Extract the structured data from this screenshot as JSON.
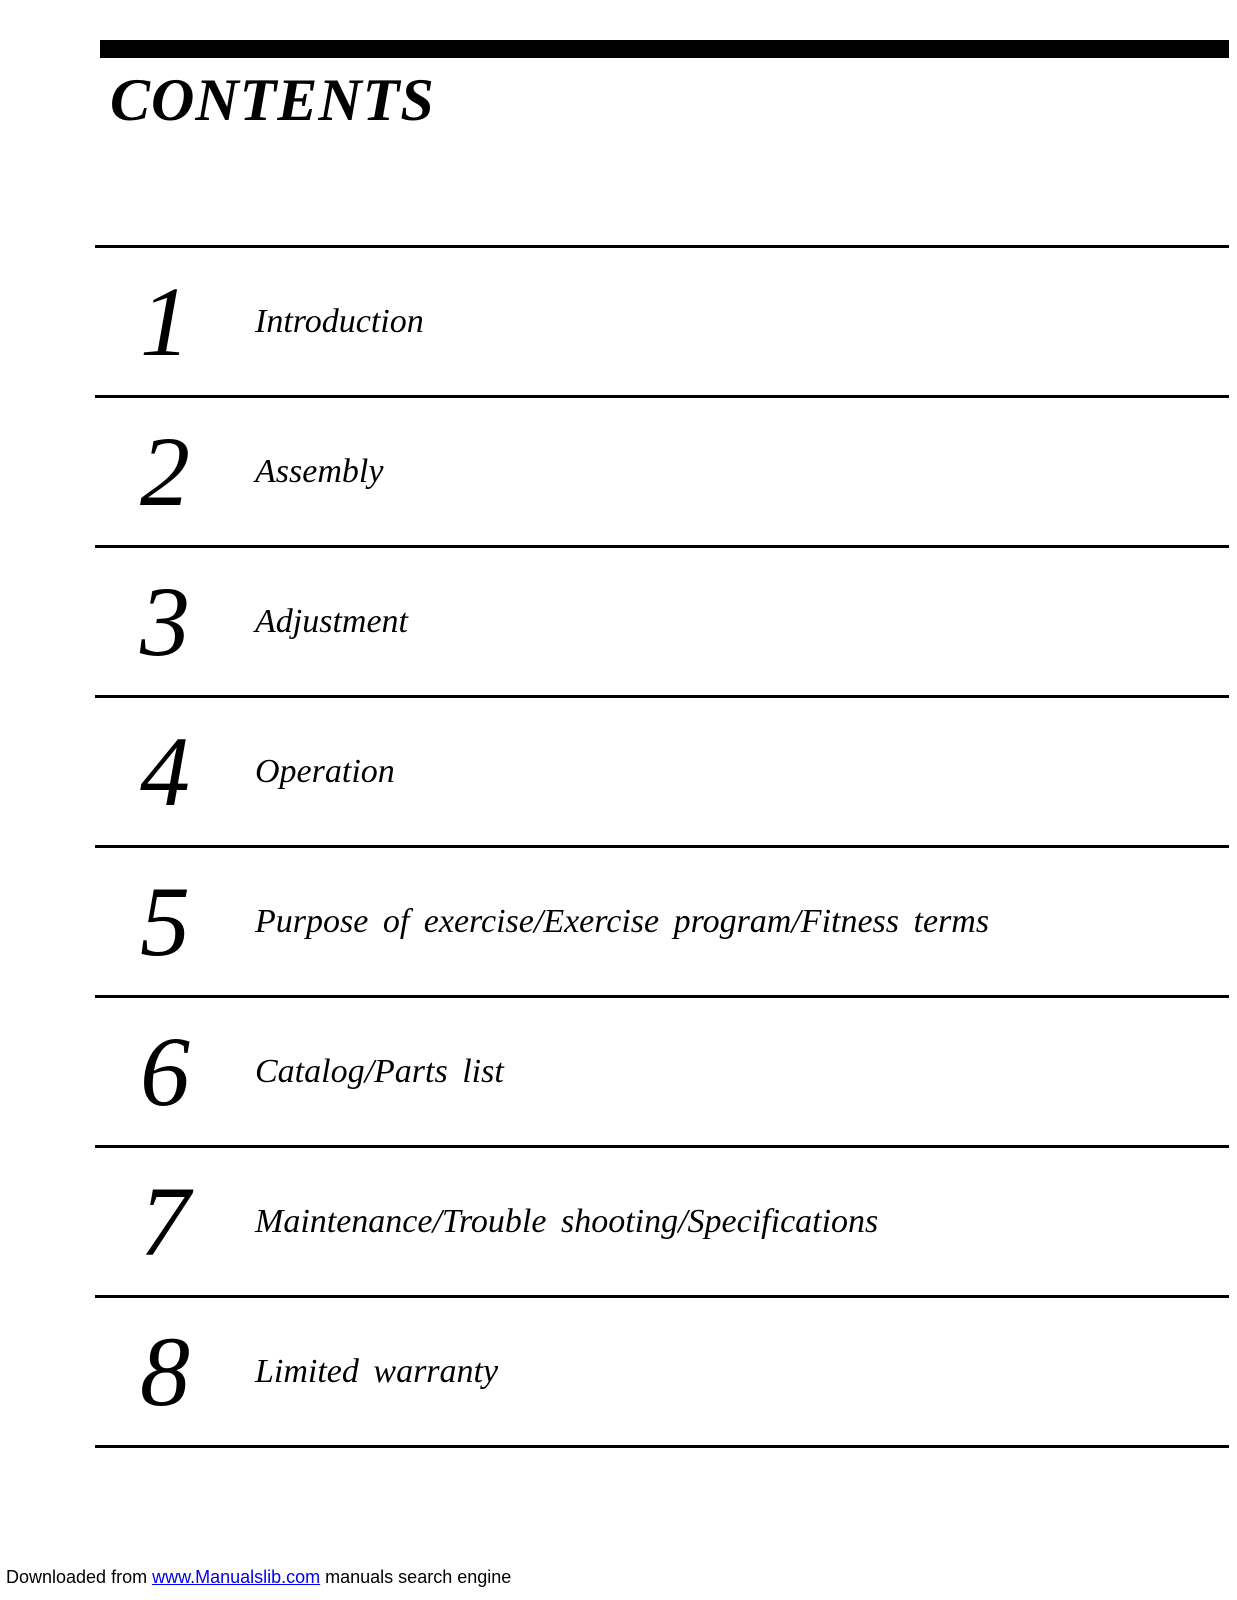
{
  "title": "CONTENTS",
  "top_bar_color": "#000000",
  "rule_color": "#000000",
  "background_color": "#ffffff",
  "text_color": "#000000",
  "title_fontsize": 60,
  "number_fontsize": 100,
  "label_fontsize": 34,
  "footer_fontsize": 18,
  "toc": {
    "items": [
      {
        "number": "1",
        "label": "Introduction"
      },
      {
        "number": "2",
        "label": "Assembly"
      },
      {
        "number": "3",
        "label": "Adjustment"
      },
      {
        "number": "4",
        "label": "Operation"
      },
      {
        "number": "5",
        "label": "Purpose of exercise/Exercise program/Fitness terms"
      },
      {
        "number": "6",
        "label": "Catalog/Parts list"
      },
      {
        "number": "7",
        "label": "Maintenance/Trouble shooting/Specifications"
      },
      {
        "number": "8",
        "label": "Limited warranty"
      }
    ]
  },
  "footer": {
    "prefix": "Downloaded from ",
    "link_text": "www.Manualslib.com",
    "link_href": "http://www.Manualslib.com",
    "suffix": " manuals search engine"
  }
}
